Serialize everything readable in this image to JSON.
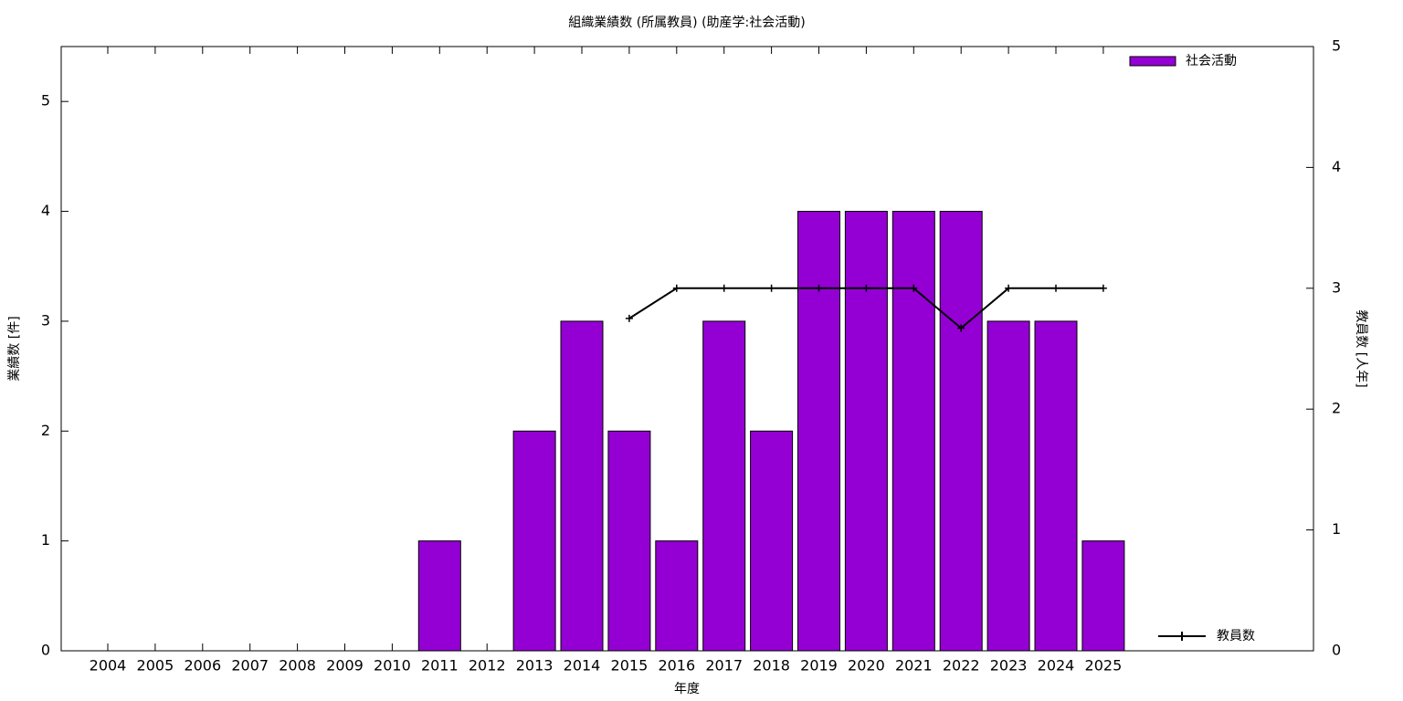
{
  "chart_data": {
    "type": "bar",
    "title": "組織業績数 (所属教員) (助産学:社会活動)",
    "x_label": "年度",
    "y_label": "業績数 [件]",
    "y2_label": "教員数 [人年]",
    "categories": [
      "2004",
      "2005",
      "2006",
      "2007",
      "2008",
      "2009",
      "2010",
      "2011",
      "2012",
      "2013",
      "2014",
      "2015",
      "2016",
      "2017",
      "2018",
      "2019",
      "2020",
      "2021",
      "2022",
      "2023",
      "2024",
      "2025"
    ],
    "series": [
      {
        "name": "社会活動",
        "color": "#9400d3",
        "values": [
          0,
          0,
          0,
          0,
          0,
          0,
          0,
          1,
          0,
          2,
          3,
          2,
          1,
          3,
          2,
          4,
          4,
          4,
          4,
          3,
          3,
          1
        ]
      },
      {
        "name": "教員数",
        "color": "#000000",
        "type": "line",
        "axis": "y2",
        "values": [
          null,
          null,
          null,
          null,
          null,
          null,
          null,
          null,
          null,
          null,
          null,
          2.75,
          3,
          3,
          3,
          3,
          3,
          3,
          2.67,
          3,
          3,
          3
        ]
      }
    ],
    "ylim": [
      0,
      5.5
    ],
    "yticks": [
      0,
      1,
      2,
      3,
      4,
      5
    ],
    "y2lim": [
      0,
      5
    ],
    "y2ticks": [
      0,
      1,
      2,
      3,
      4,
      5
    ]
  }
}
